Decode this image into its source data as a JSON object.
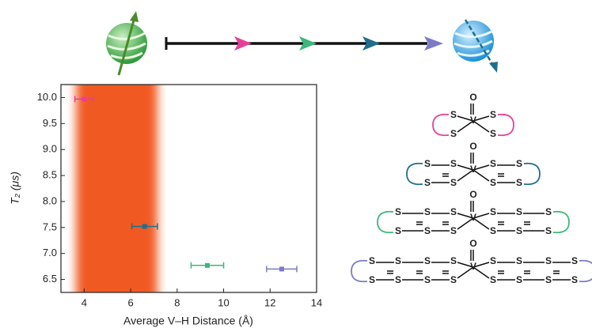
{
  "chart_data": {
    "type": "scatter",
    "x_label": "Average V–H Distance (Å)",
    "y_label": "T₂ (μs)",
    "xlim": [
      3,
      14
    ],
    "ylim": [
      6.25,
      10.25
    ],
    "xticks": [
      4,
      6,
      8,
      10,
      12,
      14
    ],
    "yticks": [
      {
        "value": 6.5,
        "label": "6.5"
      },
      {
        "value": 7.0,
        "label": "7.0"
      },
      {
        "value": 7.5,
        "label": "7.5"
      },
      {
        "value": 8.0,
        "label": "8.0"
      },
      {
        "value": 8.5,
        "label": "8.5"
      },
      {
        "value": 9.0,
        "label": "9.0"
      },
      {
        "value": 9.5,
        "label": "9.5"
      },
      {
        "value": 10.0,
        "label": "10.0"
      }
    ],
    "shade_range": [
      3.65,
      7.15
    ],
    "shade_color": "#f05a24",
    "points": [
      {
        "x": 4.0,
        "y": 9.97,
        "xerr": 0.4,
        "color": "#e5409a"
      },
      {
        "x": 6.6,
        "y": 7.52,
        "xerr": 0.55,
        "color": "#1f6e8c"
      },
      {
        "x": 9.3,
        "y": 6.77,
        "xerr": 0.7,
        "color": "#3cb77a"
      },
      {
        "x": 12.5,
        "y": 6.7,
        "xerr": 0.65,
        "color": "#7b7bc6"
      }
    ]
  },
  "atom_labels": {
    "oxygen": "O",
    "vanadium": "V",
    "sulfur": "S"
  }
}
